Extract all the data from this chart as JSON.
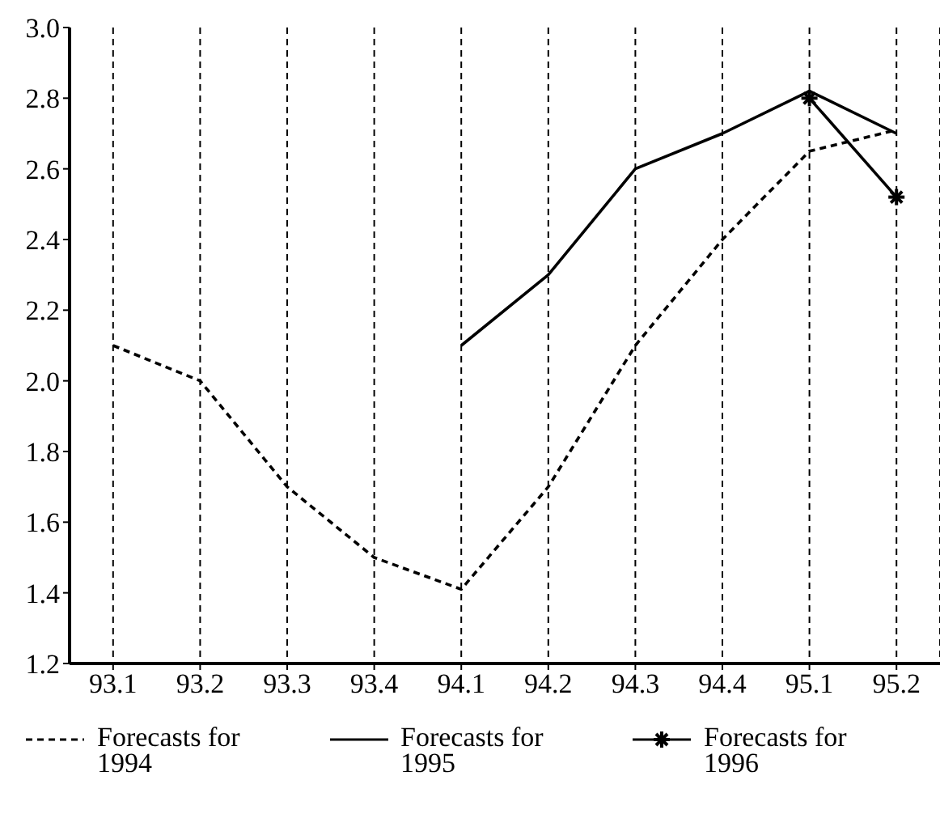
{
  "chart_data": {
    "type": "line",
    "categories": [
      "93.1",
      "93.2",
      "93.3",
      "93.4",
      "94.1",
      "94.2",
      "94.3",
      "94.4",
      "95.1",
      "95.2"
    ],
    "series": [
      {
        "name": "Forecasts for 1994",
        "color": "#000000",
        "line_style": "dashed",
        "marker": "none",
        "values": [
          2.1,
          2.0,
          1.7,
          1.5,
          1.41,
          1.7,
          2.1,
          2.4,
          2.65,
          2.71
        ]
      },
      {
        "name": "Forecasts for 1995",
        "color": "#000000",
        "line_style": "solid",
        "marker": "none",
        "values": [
          null,
          null,
          null,
          null,
          2.1,
          2.3,
          2.6,
          2.7,
          2.82,
          2.7
        ]
      },
      {
        "name": "Forecasts for 1996",
        "color": "#000000",
        "line_style": "solid",
        "marker": "cross",
        "values": [
          null,
          null,
          null,
          null,
          null,
          null,
          null,
          null,
          2.8,
          2.52
        ]
      }
    ],
    "ylim": [
      1.2,
      3.0
    ],
    "yticks": [
      {
        "value": 1.2,
        "label": "1.2"
      },
      {
        "value": 1.4,
        "label": "1.4"
      },
      {
        "value": 1.6,
        "label": "1.6"
      },
      {
        "value": 1.8,
        "label": "1.8"
      },
      {
        "value": 2.0,
        "label": "2.0"
      },
      {
        "value": 2.2,
        "label": "2.2"
      },
      {
        "value": 2.4,
        "label": "2.4"
      },
      {
        "value": 2.6,
        "label": "2.6"
      },
      {
        "value": 2.8,
        "label": "2.8"
      },
      {
        "value": 3.0,
        "label": "3.0"
      }
    ],
    "grid": "x",
    "legend": "bottom"
  }
}
